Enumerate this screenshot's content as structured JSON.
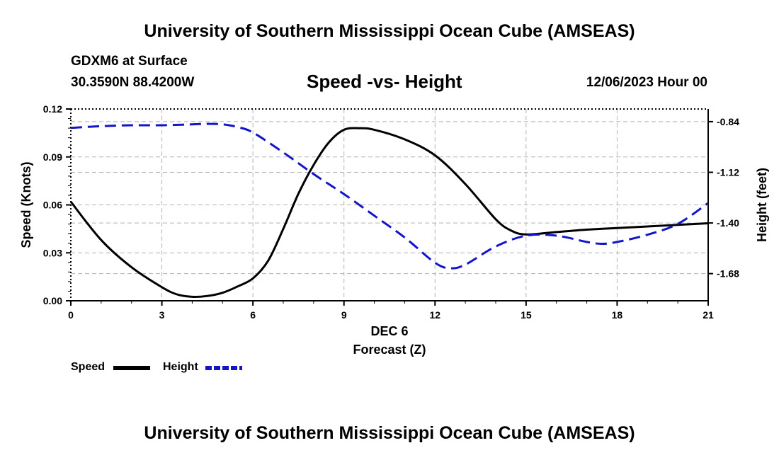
{
  "header": {
    "title": "University of Southern Mississippi Ocean Cube (AMSEAS)",
    "station": "GDXM6 at Surface",
    "coordinates": "30.3590N  88.4200W",
    "chart_title": "Speed -vs- Height",
    "datetime": "12/06/2023 Hour 00"
  },
  "footer": {
    "title": "University of Southern Mississippi Ocean Cube (AMSEAS)"
  },
  "legend": {
    "speed_label": "Speed",
    "height_label": "Height"
  },
  "colors": {
    "speed": "#000000",
    "height": "#1414c8",
    "grid": "#b4b4b4"
  },
  "chart_data": {
    "type": "line",
    "title": "Speed -vs- Height",
    "xlabel": "DEC 6",
    "xlabel2": "Forecast (Z)",
    "ylabel": "Speed (Knots)",
    "y2label": "Height (feet)",
    "xlim": [
      0,
      21
    ],
    "ylim": [
      0,
      0.12
    ],
    "y2lim": [
      -1.83,
      -0.77
    ],
    "x_ticks": [
      0,
      3,
      6,
      9,
      12,
      15,
      18,
      21
    ],
    "x_tick_labels": [
      "0",
      "3",
      "6",
      "9",
      "12",
      "15",
      "18",
      "21"
    ],
    "y_ticks": [
      0,
      0.03,
      0.06,
      0.09,
      0.12
    ],
    "y_tick_labels": [
      "0.00",
      "0.03",
      "0.06",
      "0.09",
      "0.12"
    ],
    "y2_ticks": [
      -0.84,
      -1.12,
      -1.4,
      -1.68
    ],
    "y2_tick_labels": [
      "-0.84",
      "-1.12",
      "-1.40",
      "-1.68"
    ],
    "grid": true,
    "series": [
      {
        "name": "Speed",
        "axis": "left",
        "style": "solid",
        "x": [
          0,
          1,
          2,
          3,
          3.5,
          4,
          4.5,
          5,
          5.5,
          6,
          6.5,
          7,
          7.5,
          8,
          8.5,
          9,
          9.5,
          10,
          11,
          12,
          13,
          14,
          14.5,
          15,
          16,
          17,
          18,
          19,
          20,
          21
        ],
        "values": [
          0.062,
          0.038,
          0.021,
          0.0085,
          0.004,
          0.0025,
          0.003,
          0.005,
          0.009,
          0.014,
          0.025,
          0.045,
          0.067,
          0.085,
          0.099,
          0.107,
          0.108,
          0.107,
          0.101,
          0.091,
          0.073,
          0.051,
          0.044,
          0.0415,
          0.043,
          0.0445,
          0.0455,
          0.0465,
          0.0475,
          0.0485
        ]
      },
      {
        "name": "Height",
        "axis": "right",
        "style": "dashed",
        "x": [
          0,
          1,
          2,
          3,
          4,
          4.5,
          5,
          5.5,
          6,
          7,
          8,
          9,
          10,
          11,
          12,
          12.5,
          13,
          14,
          15,
          16,
          17,
          17.5,
          18,
          19,
          20,
          21
        ],
        "values": [
          -0.875,
          -0.865,
          -0.86,
          -0.86,
          -0.855,
          -0.852,
          -0.855,
          -0.87,
          -0.9,
          -1.01,
          -1.13,
          -1.24,
          -1.36,
          -1.48,
          -1.62,
          -1.65,
          -1.63,
          -1.53,
          -1.47,
          -1.47,
          -1.505,
          -1.515,
          -1.505,
          -1.465,
          -1.405,
          -1.29
        ]
      }
    ]
  }
}
